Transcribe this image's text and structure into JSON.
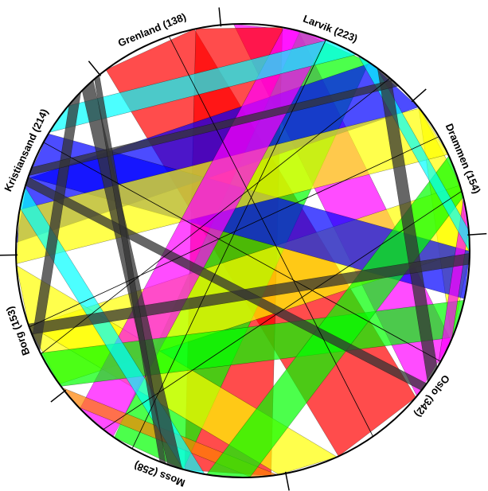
{
  "diagram": {
    "type": "chord",
    "segments": [
      {
        "id": "oslo",
        "label": "Oslo (342)",
        "name": "Oslo",
        "count": 342,
        "color": "#ff0000"
      },
      {
        "id": "moss",
        "label": "Moss (258)",
        "name": "Moss",
        "count": 258,
        "color": "#ff00ff"
      },
      {
        "id": "borg",
        "label": "Borg (153)",
        "name": "Borg",
        "count": 153,
        "color": "#00ffff"
      },
      {
        "id": "kristiansand",
        "label": "Kristiansand (214)",
        "name": "Kristiansand",
        "count": 214,
        "color": "#0000ff"
      },
      {
        "id": "grenland",
        "label": "Grenland (138)",
        "name": "Grenland",
        "count": 138,
        "color": "#00ff00"
      },
      {
        "id": "larvik",
        "label": "Larvik (223)",
        "name": "Larvik",
        "count": 223,
        "color": "#ffff00"
      },
      {
        "id": "drammen",
        "label": "Drammen (154)",
        "name": "Drammen",
        "count": 154,
        "color": "#ff00ff"
      }
    ],
    "chords": [
      {
        "from": "drammen",
        "to": "oslo",
        "value": 40,
        "color": "#ffff00"
      },
      {
        "from": "larvik",
        "to": "oslo",
        "value": 30,
        "color": "#ff00ff"
      },
      {
        "from": "oslo",
        "to": "grenland",
        "value": 45,
        "color": "#ff0000"
      },
      {
        "from": "moss",
        "to": "grenland",
        "value": 40,
        "color": "#ff0000"
      },
      {
        "from": "larvik",
        "to": "moss",
        "value": 35,
        "color": "#00ff00"
      },
      {
        "from": "drammen",
        "to": "borg",
        "value": 30,
        "color": "#ffff00"
      },
      {
        "from": "larvik",
        "to": "kristiansand",
        "value": 30,
        "color": "#0000ff"
      },
      {
        "from": "oslo",
        "to": "borg",
        "value": 28,
        "color": "#ffff00"
      },
      {
        "from": "drammen",
        "to": "kristiansand",
        "value": 22,
        "color": "#0000ff"
      },
      {
        "from": "larvik",
        "to": "borg",
        "value": 25,
        "color": "#ffff00"
      },
      {
        "from": "grenland",
        "to": "moss",
        "value": 20,
        "color": "#ff00ff"
      },
      {
        "from": "oslo",
        "to": "moss",
        "value": 12,
        "color": "#ff8000"
      },
      {
        "from": "drammen",
        "to": "moss",
        "value": 18,
        "color": "#00ff00"
      },
      {
        "from": "oslo",
        "to": "larvik",
        "value": 20,
        "color": "#00ff00"
      },
      {
        "from": "grenland",
        "to": "kristiansand",
        "value": 15,
        "color": "#00ffff"
      },
      {
        "from": "borg",
        "to": "oslo",
        "value": 10,
        "color": "#00ffff"
      },
      {
        "from": "drammen",
        "to": "larvik",
        "value": 14,
        "color": "#ff00ff"
      },
      {
        "from": "larvik",
        "to": "grenland",
        "value": 10,
        "color": "#00ffff"
      },
      {
        "from": "kristiansand",
        "to": "moss",
        "value": 8,
        "color": "#333333"
      },
      {
        "from": "drammen",
        "to": "grenland",
        "value": 8,
        "color": "#333333"
      },
      {
        "from": "oslo",
        "to": "kristiansand",
        "value": 7,
        "color": "#333333"
      },
      {
        "from": "larvik",
        "to": "moss",
        "value": 5,
        "color": "#333333"
      },
      {
        "from": "drammen",
        "to": "borg",
        "value": 4,
        "color": "#333333"
      },
      {
        "from": "grenland",
        "to": "borg",
        "value": 4,
        "color": "#333333"
      },
      {
        "from": "kristiansand",
        "to": "oslo",
        "value": 3,
        "color": "#333333"
      }
    ]
  }
}
